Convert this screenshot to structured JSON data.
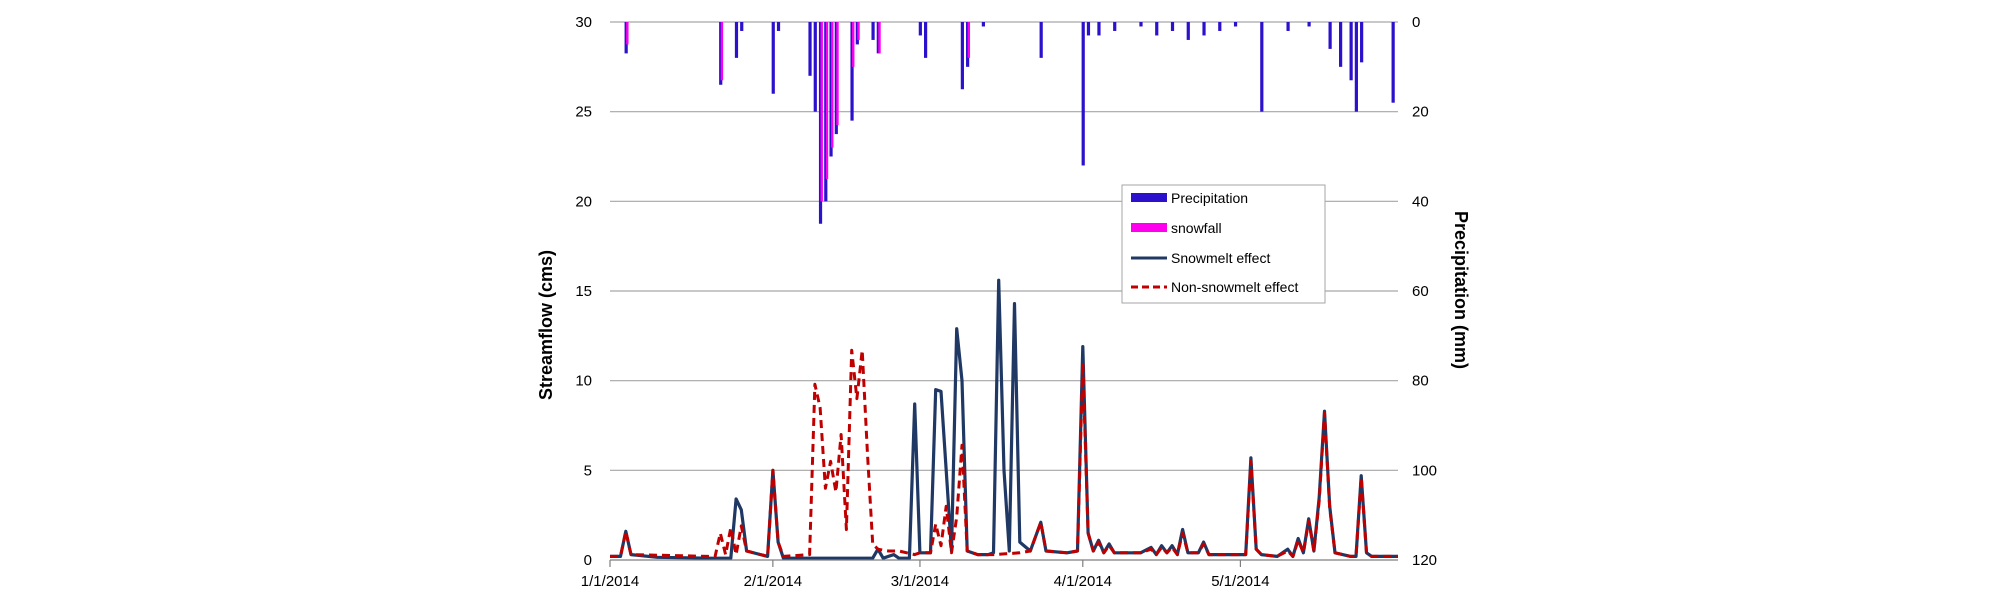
{
  "chart_data": {
    "type": "line",
    "start_date": "2014-01-01",
    "end_date": "2014-05-31",
    "x_tick_labels": [
      "1/1/2014",
      "2/1/2014",
      "3/1/2014",
      "4/1/2014",
      "5/1/2014"
    ],
    "ylabel": "Streamflow (cms)",
    "y2label": "Precipitation (mm)",
    "ylim": [
      0,
      30
    ],
    "y2lim": [
      0,
      120
    ],
    "y2_inverted": true,
    "y_ticks": [
      0,
      5,
      10,
      15,
      20,
      25,
      30
    ],
    "y2_ticks": [
      0,
      20,
      40,
      60,
      80,
      100,
      120
    ],
    "grid": true,
    "legend_position": "right-center",
    "series": [
      {
        "name": "Precipitation",
        "kind": "bar",
        "axis": "y2",
        "color": "#2B11CC",
        "points": [
          [
            "2014-01-04",
            7
          ],
          [
            "2014-01-22",
            14
          ],
          [
            "2014-01-25",
            8
          ],
          [
            "2014-01-26",
            2
          ],
          [
            "2014-02-01",
            16
          ],
          [
            "2014-02-02",
            2
          ],
          [
            "2014-02-08",
            12
          ],
          [
            "2014-02-09",
            20
          ],
          [
            "2014-02-10",
            45
          ],
          [
            "2014-02-11",
            40
          ],
          [
            "2014-02-12",
            30
          ],
          [
            "2014-02-13",
            25
          ],
          [
            "2014-02-16",
            22
          ],
          [
            "2014-02-17",
            5
          ],
          [
            "2014-02-20",
            4
          ],
          [
            "2014-02-21",
            7
          ],
          [
            "2014-03-01",
            3
          ],
          [
            "2014-03-02",
            8
          ],
          [
            "2014-03-09",
            15
          ],
          [
            "2014-03-10",
            10
          ],
          [
            "2014-03-13",
            1
          ],
          [
            "2014-03-24",
            8
          ],
          [
            "2014-04-01",
            32
          ],
          [
            "2014-04-02",
            3
          ],
          [
            "2014-04-04",
            3
          ],
          [
            "2014-04-07",
            2
          ],
          [
            "2014-04-12",
            1
          ],
          [
            "2014-04-15",
            3
          ],
          [
            "2014-04-18",
            2
          ],
          [
            "2014-04-21",
            4
          ],
          [
            "2014-04-24",
            3
          ],
          [
            "2014-04-27",
            2
          ],
          [
            "2014-04-30",
            1
          ],
          [
            "2014-05-05",
            20
          ],
          [
            "2014-05-10",
            2
          ],
          [
            "2014-05-14",
            1
          ],
          [
            "2014-05-18",
            6
          ],
          [
            "2014-05-20",
            10
          ],
          [
            "2014-05-22",
            13
          ],
          [
            "2014-05-23",
            20
          ],
          [
            "2014-05-24",
            9
          ],
          [
            "2014-05-30",
            18
          ]
        ]
      },
      {
        "name": "snowfall",
        "kind": "bar",
        "axis": "y2",
        "color": "#FF00EE",
        "points": [
          [
            "2014-01-04",
            5
          ],
          [
            "2014-01-22",
            13
          ],
          [
            "2014-02-10",
            40
          ],
          [
            "2014-02-11",
            35
          ],
          [
            "2014-02-12",
            28
          ],
          [
            "2014-02-13",
            23
          ],
          [
            "2014-02-16",
            10
          ],
          [
            "2014-02-17",
            4
          ],
          [
            "2014-02-21",
            7
          ],
          [
            "2014-03-10",
            8
          ]
        ]
      },
      {
        "name": "Snowmelt effect",
        "kind": "line",
        "axis": "y",
        "color": "#1F3864",
        "points": [
          [
            "2014-01-01",
            0.2
          ],
          [
            "2014-01-03",
            0.2
          ],
          [
            "2014-01-04",
            1.6
          ],
          [
            "2014-01-05",
            0.3
          ],
          [
            "2014-01-10",
            0.15
          ],
          [
            "2014-01-20",
            0.1
          ],
          [
            "2014-01-24",
            0.1
          ],
          [
            "2014-01-25",
            3.4
          ],
          [
            "2014-01-26",
            2.8
          ],
          [
            "2014-01-27",
            0.5
          ],
          [
            "2014-01-31",
            0.2
          ],
          [
            "2014-02-01",
            5.0
          ],
          [
            "2014-02-02",
            1.0
          ],
          [
            "2014-02-03",
            0.1
          ],
          [
            "2014-02-20",
            0.1
          ],
          [
            "2014-02-21",
            0.6
          ],
          [
            "2014-02-22",
            0.1
          ],
          [
            "2014-02-24",
            0.3
          ],
          [
            "2014-02-25",
            0.1
          ],
          [
            "2014-02-27",
            0.1
          ],
          [
            "2014-02-28",
            8.7
          ],
          [
            "2014-03-01",
            0.4
          ],
          [
            "2014-03-03",
            0.4
          ],
          [
            "2014-03-04",
            9.5
          ],
          [
            "2014-03-05",
            9.4
          ],
          [
            "2014-03-06",
            5.0
          ],
          [
            "2014-03-07",
            0.5
          ],
          [
            "2014-03-08",
            12.9
          ],
          [
            "2014-03-09",
            10.0
          ],
          [
            "2014-03-10",
            0.5
          ],
          [
            "2014-03-12",
            0.3
          ],
          [
            "2014-03-14",
            0.3
          ],
          [
            "2014-03-15",
            0.4
          ],
          [
            "2014-03-16",
            15.6
          ],
          [
            "2014-03-17",
            5.0
          ],
          [
            "2014-03-18",
            0.5
          ],
          [
            "2014-03-19",
            14.3
          ],
          [
            "2014-03-20",
            1.0
          ],
          [
            "2014-03-22",
            0.5
          ],
          [
            "2014-03-24",
            2.1
          ],
          [
            "2014-03-25",
            0.5
          ],
          [
            "2014-03-29",
            0.4
          ],
          [
            "2014-03-31",
            0.5
          ],
          [
            "2014-04-01",
            11.9
          ],
          [
            "2014-04-02",
            1.5
          ],
          [
            "2014-04-03",
            0.5
          ],
          [
            "2014-04-04",
            1.1
          ],
          [
            "2014-04-05",
            0.4
          ],
          [
            "2014-04-06",
            0.9
          ],
          [
            "2014-04-07",
            0.4
          ],
          [
            "2014-04-12",
            0.4
          ],
          [
            "2014-04-14",
            0.7
          ],
          [
            "2014-04-15",
            0.3
          ],
          [
            "2014-04-16",
            0.8
          ],
          [
            "2014-04-17",
            0.4
          ],
          [
            "2014-04-18",
            0.8
          ],
          [
            "2014-04-19",
            0.3
          ],
          [
            "2014-04-20",
            1.7
          ],
          [
            "2014-04-21",
            0.4
          ],
          [
            "2014-04-23",
            0.4
          ],
          [
            "2014-04-24",
            1.0
          ],
          [
            "2014-04-25",
            0.3
          ],
          [
            "2014-04-30",
            0.3
          ],
          [
            "2014-05-02",
            0.3
          ],
          [
            "2014-05-03",
            5.7
          ],
          [
            "2014-05-04",
            0.6
          ],
          [
            "2014-05-05",
            0.3
          ],
          [
            "2014-05-08",
            0.2
          ],
          [
            "2014-05-10",
            0.6
          ],
          [
            "2014-05-11",
            0.2
          ],
          [
            "2014-05-12",
            1.2
          ],
          [
            "2014-05-13",
            0.4
          ],
          [
            "2014-05-14",
            2.3
          ],
          [
            "2014-05-15",
            0.5
          ],
          [
            "2014-05-16",
            3.5
          ],
          [
            "2014-05-17",
            8.3
          ],
          [
            "2014-05-18",
            3.0
          ],
          [
            "2014-05-19",
            0.4
          ],
          [
            "2014-05-22",
            0.2
          ],
          [
            "2014-05-23",
            0.2
          ],
          [
            "2014-05-24",
            4.7
          ],
          [
            "2014-05-25",
            0.4
          ],
          [
            "2014-05-26",
            0.2
          ],
          [
            "2014-05-31",
            0.2
          ]
        ]
      },
      {
        "name": "Non-snowmelt effect",
        "kind": "line",
        "axis": "y",
        "color": "#C00000",
        "dash": true,
        "points": [
          [
            "2014-01-01",
            0.2
          ],
          [
            "2014-01-03",
            0.2
          ],
          [
            "2014-01-04",
            1.6
          ],
          [
            "2014-01-05",
            0.3
          ],
          [
            "2014-01-20",
            0.2
          ],
          [
            "2014-01-21",
            0.2
          ],
          [
            "2014-01-22",
            1.5
          ],
          [
            "2014-01-23",
            0.3
          ],
          [
            "2014-01-24",
            1.8
          ],
          [
            "2014-01-25",
            0.3
          ],
          [
            "2014-01-26",
            1.9
          ],
          [
            "2014-01-27",
            0.5
          ],
          [
            "2014-01-31",
            0.2
          ],
          [
            "2014-02-01",
            5.0
          ],
          [
            "2014-02-02",
            1.0
          ],
          [
            "2014-02-03",
            0.2
          ],
          [
            "2014-02-08",
            0.3
          ],
          [
            "2014-02-09",
            9.8
          ],
          [
            "2014-02-10",
            8.5
          ],
          [
            "2014-02-11",
            4.0
          ],
          [
            "2014-02-12",
            5.5
          ],
          [
            "2014-02-13",
            3.8
          ],
          [
            "2014-02-14",
            7.0
          ],
          [
            "2014-02-15",
            1.7
          ],
          [
            "2014-02-16",
            11.7
          ],
          [
            "2014-02-17",
            9.0
          ],
          [
            "2014-02-18",
            11.7
          ],
          [
            "2014-02-19",
            6.0
          ],
          [
            "2014-02-20",
            0.9
          ],
          [
            "2014-02-21",
            0.6
          ],
          [
            "2014-02-23",
            0.5
          ],
          [
            "2014-02-25",
            0.5
          ],
          [
            "2014-02-28",
            0.3
          ],
          [
            "2014-03-01",
            0.4
          ],
          [
            "2014-03-03",
            0.4
          ],
          [
            "2014-03-04",
            2.0
          ],
          [
            "2014-03-05",
            0.8
          ],
          [
            "2014-03-06",
            3.0
          ],
          [
            "2014-03-07",
            0.4
          ],
          [
            "2014-03-08",
            2.4
          ],
          [
            "2014-03-09",
            6.4
          ],
          [
            "2014-03-10",
            0.5
          ],
          [
            "2014-03-12",
            0.3
          ],
          [
            "2014-03-15",
            0.3
          ],
          [
            "2014-03-20",
            0.4
          ],
          [
            "2014-03-22",
            0.5
          ],
          [
            "2014-03-24",
            2.1
          ],
          [
            "2014-03-25",
            0.5
          ],
          [
            "2014-03-29",
            0.4
          ],
          [
            "2014-03-31",
            0.5
          ],
          [
            "2014-04-01",
            11.0
          ],
          [
            "2014-04-02",
            1.5
          ],
          [
            "2014-04-03",
            0.5
          ],
          [
            "2014-04-04",
            1.0
          ],
          [
            "2014-04-05",
            0.4
          ],
          [
            "2014-04-06",
            0.8
          ],
          [
            "2014-04-07",
            0.4
          ],
          [
            "2014-04-12",
            0.4
          ],
          [
            "2014-04-14",
            0.6
          ],
          [
            "2014-04-15",
            0.3
          ],
          [
            "2014-04-16",
            0.7
          ],
          [
            "2014-04-17",
            0.4
          ],
          [
            "2014-04-18",
            0.7
          ],
          [
            "2014-04-19",
            0.3
          ],
          [
            "2014-04-20",
            1.5
          ],
          [
            "2014-04-21",
            0.4
          ],
          [
            "2014-04-23",
            0.4
          ],
          [
            "2014-04-24",
            0.9
          ],
          [
            "2014-04-25",
            0.3
          ],
          [
            "2014-04-30",
            0.3
          ],
          [
            "2014-05-02",
            0.3
          ],
          [
            "2014-05-03",
            5.5
          ],
          [
            "2014-05-04",
            0.6
          ],
          [
            "2014-05-05",
            0.3
          ],
          [
            "2014-05-08",
            0.2
          ],
          [
            "2014-05-10",
            0.5
          ],
          [
            "2014-05-11",
            0.2
          ],
          [
            "2014-05-12",
            1.1
          ],
          [
            "2014-05-13",
            0.4
          ],
          [
            "2014-05-14",
            2.2
          ],
          [
            "2014-05-15",
            0.5
          ],
          [
            "2014-05-16",
            3.3
          ],
          [
            "2014-05-17",
            8.2
          ],
          [
            "2014-05-18",
            2.9
          ],
          [
            "2014-05-19",
            0.4
          ],
          [
            "2014-05-22",
            0.2
          ],
          [
            "2014-05-23",
            0.2
          ],
          [
            "2014-05-24",
            4.6
          ],
          [
            "2014-05-25",
            0.4
          ],
          [
            "2014-05-26",
            0.2
          ],
          [
            "2014-05-31",
            0.2
          ]
        ]
      }
    ]
  }
}
